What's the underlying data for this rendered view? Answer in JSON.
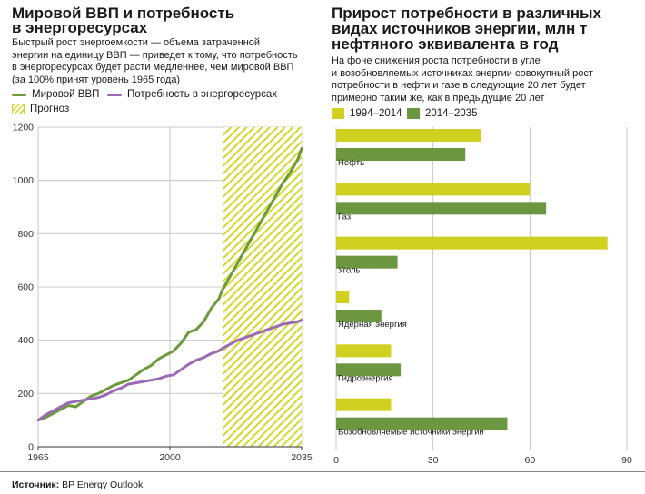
{
  "left": {
    "title_line1": "Мировой ВВП и потребность",
    "title_line2": "в энергоресурсах",
    "subtitle_lines": [
      "Быстрый рост энергоемкости — объема затраченной",
      "энергии на единицу ВВП — приведет к тому, что потребность",
      "в энергоресурсах будет расти медленнее, чем мировой ВВП",
      "(за 100% принят уровень 1965 года)"
    ],
    "legend": {
      "gdp": "Мировой ВВП",
      "energy": "Потребность в энергоресурсах",
      "forecast": "Прогноз"
    }
  },
  "right": {
    "title_line1": "Прирост потребности в различных",
    "title_line2": "видах источников энергии, млн т",
    "title_line3": "нефтяного эквивалента в год",
    "subtitle_lines": [
      "На фоне снижения роста потребности в угле",
      "и возобновляемых источниках энергии совокупный рост",
      "потребности в нефти и газе в следующие 20 лет будет",
      "примерно таким же, как в предыдущие 20 лет"
    ],
    "legend": {
      "s1": "1994–2014",
      "s2": "2014–2035"
    }
  },
  "source": {
    "label": "Источник:",
    "text": "BP Energy Outlook"
  },
  "colors": {
    "gdp": "#6b9a3c",
    "energy": "#9b6ab5",
    "hatch": "#d4d62c",
    "bar1": "#d0d020",
    "bar2": "#6d9640",
    "grid": "#bdbdbd"
  },
  "chart_data": [
    {
      "type": "line",
      "x_ticks": [
        1965,
        2000,
        2035
      ],
      "ylim": [
        0,
        1200
      ],
      "y_ticks": [
        0,
        200,
        400,
        600,
        800,
        1000,
        1200
      ],
      "forecast_range": [
        2014,
        2035
      ],
      "grid": true,
      "series": [
        {
          "name": "Мировой ВВП",
          "x": [
            1965,
            1967,
            1969,
            1971,
            1973,
            1975,
            1977,
            1979,
            1981,
            1983,
            1985,
            1987,
            1989,
            1991,
            1993,
            1995,
            1997,
            1999,
            2001,
            2003,
            2005,
            2007,
            2009,
            2011,
            2013,
            2014,
            2016,
            2018,
            2020,
            2022,
            2024,
            2026,
            2028,
            2030,
            2032,
            2034,
            2035
          ],
          "y": [
            100,
            110,
            125,
            140,
            155,
            150,
            170,
            190,
            200,
            215,
            230,
            240,
            250,
            270,
            290,
            305,
            330,
            345,
            360,
            390,
            430,
            440,
            470,
            520,
            555,
            590,
            640,
            690,
            740,
            790,
            840,
            890,
            940,
            990,
            1030,
            1080,
            1120
          ]
        },
        {
          "name": "Потребность в энергоресурсах",
          "x": [
            1965,
            1967,
            1969,
            1971,
            1973,
            1975,
            1977,
            1979,
            1981,
            1983,
            1985,
            1987,
            1989,
            1991,
            1993,
            1995,
            1997,
            1999,
            2001,
            2003,
            2005,
            2007,
            2009,
            2011,
            2013,
            2014,
            2016,
            2018,
            2020,
            2022,
            2024,
            2026,
            2028,
            2030,
            2032,
            2034,
            2035
          ],
          "y": [
            100,
            120,
            135,
            150,
            165,
            170,
            175,
            180,
            185,
            195,
            210,
            220,
            235,
            240,
            245,
            250,
            255,
            265,
            270,
            290,
            310,
            325,
            335,
            350,
            360,
            370,
            385,
            400,
            410,
            420,
            430,
            440,
            450,
            460,
            465,
            470,
            475
          ]
        }
      ]
    },
    {
      "type": "bar",
      "orientation": "horizontal",
      "xlim": [
        0,
        90
      ],
      "x_ticks": [
        0,
        30,
        60,
        90
      ],
      "categories": [
        "Нефть",
        "Газ",
        "Уголь",
        "Ядерная энергия",
        "Гидроэнергия",
        "Возобновляемые источники энергии"
      ],
      "series": [
        {
          "name": "1994–2014",
          "values": [
            45,
            60,
            84,
            4,
            17,
            17
          ]
        },
        {
          "name": "2014–2035",
          "values": [
            40,
            65,
            19,
            14,
            20,
            53
          ]
        }
      ],
      "grid": true
    }
  ]
}
